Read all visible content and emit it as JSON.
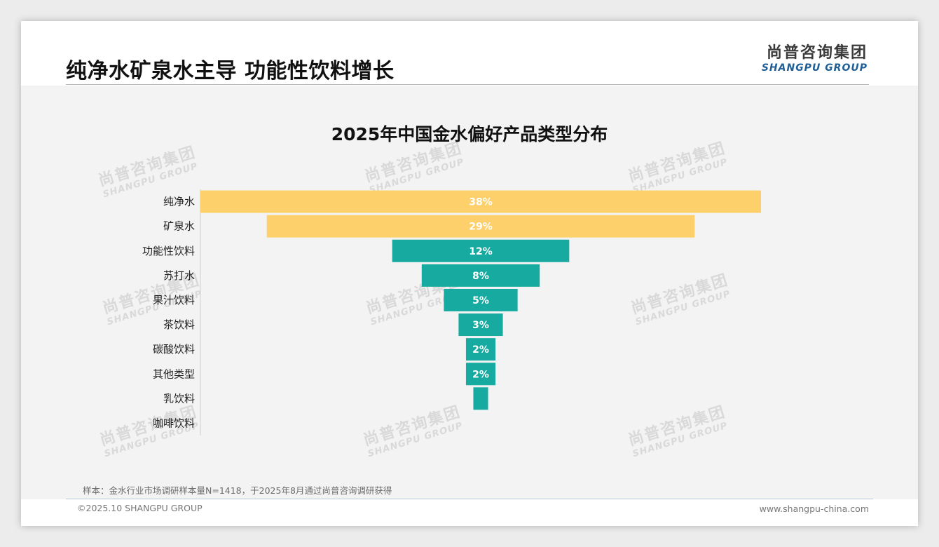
{
  "header": {
    "title": "纯净水矿泉水主导 功能性饮料增长",
    "logo_cn": "尚普咨询集团",
    "logo_en": "SHANGPU GROUP"
  },
  "watermark": {
    "cn": "尚普咨询集团",
    "en": "SHANGPU GROUP"
  },
  "footer": {
    "note": "样本：金水行业市场调研样本量N=1418，于2025年8月通过尚普咨询调研获得",
    "copyright": "©2025.10 SHANGPU GROUP",
    "website": "www.shangpu-china.com"
  },
  "colors": {
    "highlight": "#fdd06b",
    "primary": "#16aaa0",
    "label_text": "#ffffff",
    "axis": "#cfcfcf"
  },
  "chart_data": {
    "type": "bar",
    "subtype": "funnel",
    "title": "2025年中国金水偏好产品类型分布",
    "categories": [
      "纯净水",
      "矿泉水",
      "功能性饮料",
      "苏打水",
      "果汁饮料",
      "茶饮料",
      "碳酸饮料",
      "其他类型",
      "乳饮料",
      "咖啡饮料"
    ],
    "values": [
      38,
      29,
      12,
      8,
      5,
      3,
      2,
      2,
      1,
      0
    ],
    "data_labels": [
      "38%",
      "29%",
      "12%",
      "8%",
      "5%",
      "3%",
      "2%",
      "2%",
      "",
      ""
    ],
    "bar_colors": [
      "#fdd06b",
      "#fdd06b",
      "#16aaa0",
      "#16aaa0",
      "#16aaa0",
      "#16aaa0",
      "#16aaa0",
      "#16aaa0",
      "#16aaa0",
      "#16aaa0"
    ],
    "unit": "%",
    "xlim": [
      0,
      38
    ]
  }
}
